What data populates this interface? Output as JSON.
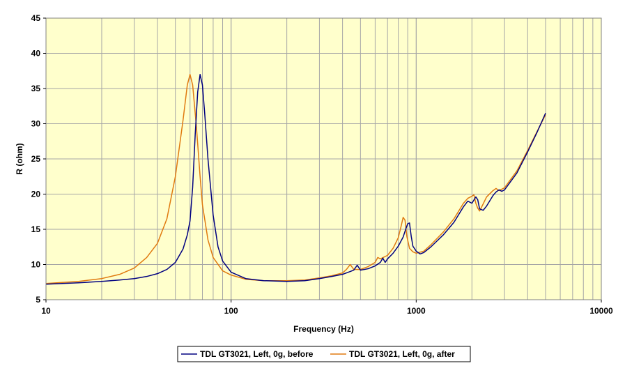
{
  "chart_data": {
    "type": "line",
    "xlabel": "Frequency (Hz)",
    "ylabel": "R (ohm)",
    "x_scale": "log",
    "xlim": [
      10,
      10000
    ],
    "ylim": [
      5,
      45
    ],
    "x_ticks": [
      "10",
      "100",
      "1000",
      "10000"
    ],
    "y_ticks": [
      "5",
      "10",
      "15",
      "20",
      "25",
      "30",
      "35",
      "40",
      "45"
    ],
    "grid": true,
    "legend_position": "bottom",
    "colors": {
      "plot_background": "#FFFFCC",
      "grid": "#A6A6A6",
      "before": "#000080",
      "after": "#E07A10"
    },
    "series": [
      {
        "name": "TDL GT3021, Left, 0g, before",
        "color": "#000080",
        "points": [
          [
            10,
            7.2
          ],
          [
            15,
            7.4
          ],
          [
            20,
            7.6
          ],
          [
            25,
            7.8
          ],
          [
            30,
            8.0
          ],
          [
            35,
            8.3
          ],
          [
            40,
            8.7
          ],
          [
            45,
            9.3
          ],
          [
            50,
            10.3
          ],
          [
            55,
            12.2
          ],
          [
            58,
            14.2
          ],
          [
            60,
            16.2
          ],
          [
            62,
            21.0
          ],
          [
            64,
            28.5
          ],
          [
            66,
            34.5
          ],
          [
            68,
            37.0
          ],
          [
            70,
            35.5
          ],
          [
            72,
            31.5
          ],
          [
            75,
            25.0
          ],
          [
            80,
            17.0
          ],
          [
            85,
            12.5
          ],
          [
            90,
            10.5
          ],
          [
            100,
            8.9
          ],
          [
            120,
            8.0
          ],
          [
            150,
            7.7
          ],
          [
            200,
            7.6
          ],
          [
            250,
            7.7
          ],
          [
            300,
            8.0
          ],
          [
            350,
            8.3
          ],
          [
            400,
            8.6
          ],
          [
            440,
            9.0
          ],
          [
            460,
            9.2
          ],
          [
            480,
            9.9
          ],
          [
            500,
            9.2
          ],
          [
            550,
            9.4
          ],
          [
            600,
            9.8
          ],
          [
            640,
            10.3
          ],
          [
            660,
            10.9
          ],
          [
            680,
            10.3
          ],
          [
            700,
            10.8
          ],
          [
            750,
            11.6
          ],
          [
            800,
            12.6
          ],
          [
            850,
            13.9
          ],
          [
            880,
            15.1
          ],
          [
            900,
            15.8
          ],
          [
            920,
            15.9
          ],
          [
            940,
            14.0
          ],
          [
            960,
            12.6
          ],
          [
            1000,
            11.9
          ],
          [
            1050,
            11.5
          ],
          [
            1100,
            11.7
          ],
          [
            1200,
            12.5
          ],
          [
            1400,
            14.2
          ],
          [
            1600,
            16.0
          ],
          [
            1800,
            18.2
          ],
          [
            1900,
            19.0
          ],
          [
            2000,
            18.7
          ],
          [
            2100,
            19.6
          ],
          [
            2150,
            19.2
          ],
          [
            2200,
            17.9
          ],
          [
            2300,
            17.7
          ],
          [
            2400,
            18.3
          ],
          [
            2600,
            19.8
          ],
          [
            2700,
            20.3
          ],
          [
            2800,
            20.6
          ],
          [
            2900,
            20.4
          ],
          [
            3000,
            20.6
          ],
          [
            3500,
            23.0
          ],
          [
            4000,
            26.0
          ],
          [
            4500,
            28.8
          ],
          [
            5000,
            31.5
          ]
        ]
      },
      {
        "name": "TDL GT3021, Left, 0g, after",
        "color": "#E07A10",
        "points": [
          [
            10,
            7.3
          ],
          [
            15,
            7.6
          ],
          [
            20,
            8.0
          ],
          [
            25,
            8.6
          ],
          [
            30,
            9.5
          ],
          [
            35,
            11.0
          ],
          [
            40,
            13.0
          ],
          [
            45,
            16.5
          ],
          [
            50,
            22.5
          ],
          [
            55,
            30.5
          ],
          [
            58,
            35.5
          ],
          [
            60,
            37.0
          ],
          [
            62,
            35.5
          ],
          [
            65,
            29.5
          ],
          [
            68,
            22.5
          ],
          [
            70,
            18.5
          ],
          [
            75,
            13.5
          ],
          [
            80,
            11.0
          ],
          [
            90,
            9.1
          ],
          [
            100,
            8.5
          ],
          [
            120,
            7.9
          ],
          [
            150,
            7.7
          ],
          [
            200,
            7.7
          ],
          [
            250,
            7.8
          ],
          [
            300,
            8.1
          ],
          [
            350,
            8.4
          ],
          [
            400,
            8.8
          ],
          [
            420,
            9.3
          ],
          [
            440,
            10.0
          ],
          [
            460,
            9.3
          ],
          [
            500,
            9.3
          ],
          [
            550,
            9.7
          ],
          [
            600,
            10.3
          ],
          [
            620,
            11.0
          ],
          [
            640,
            10.8
          ],
          [
            700,
            11.3
          ],
          [
            750,
            12.3
          ],
          [
            800,
            13.8
          ],
          [
            830,
            15.5
          ],
          [
            850,
            16.7
          ],
          [
            870,
            16.3
          ],
          [
            890,
            14.0
          ],
          [
            920,
            12.3
          ],
          [
            960,
            11.8
          ],
          [
            1000,
            11.6
          ],
          [
            1100,
            11.9
          ],
          [
            1200,
            12.8
          ],
          [
            1400,
            14.6
          ],
          [
            1600,
            16.5
          ],
          [
            1800,
            18.7
          ],
          [
            1900,
            19.4
          ],
          [
            2000,
            19.7
          ],
          [
            2050,
            19.9
          ],
          [
            2100,
            18.7
          ],
          [
            2150,
            18.0
          ],
          [
            2200,
            17.6
          ],
          [
            2300,
            18.6
          ],
          [
            2400,
            19.6
          ],
          [
            2600,
            20.5
          ],
          [
            2700,
            20.8
          ],
          [
            2800,
            20.5
          ],
          [
            3000,
            20.9
          ],
          [
            3500,
            23.3
          ],
          [
            4000,
            26.2
          ],
          [
            4500,
            28.9
          ],
          [
            5000,
            31.3
          ]
        ]
      }
    ]
  }
}
